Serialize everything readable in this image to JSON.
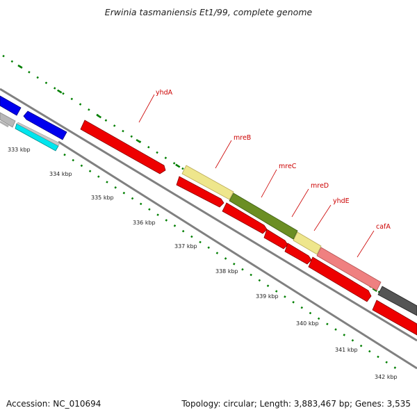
{
  "title": "Erwinia tasmaniensis Et1/99, complete genome",
  "footer": {
    "accession": "Accession: NC_010694",
    "stats": "Topology: circular; Length: 3,883,467 bp; Genes: 3,535"
  },
  "ticks": [
    "333 kbp",
    "334 kbp",
    "335 kbp",
    "336 kbp",
    "337 kbp",
    "338 kbp",
    "339 kbp",
    "340 kbp",
    "341 kbp",
    "342 kbp"
  ],
  "gene_labels": [
    "yhdA",
    "mreB",
    "mreC",
    "mreD",
    "yhdE",
    "cafA"
  ],
  "colors": {
    "forward_blue": "#0000ee",
    "cyan": "#00e5ee",
    "red": "#ee0000",
    "khaki": "#eee68c",
    "olive": "#6b8e23",
    "pink": "#ef8080",
    "dark_gray": "#555555",
    "backbone": "#808080",
    "tick_green": "#007f00",
    "label_red": "#cc0000"
  }
}
